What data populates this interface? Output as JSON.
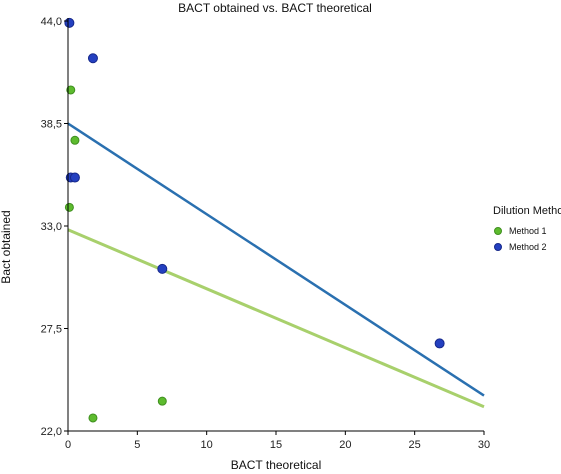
{
  "chart_data": {
    "type": "scatter",
    "title": "BACT obtained vs. BACT theoretical",
    "xlabel": "BACT theoretical",
    "ylabel": "Bact obtained",
    "xlim": [
      0,
      30
    ],
    "ylim": [
      22.0,
      44.0
    ],
    "x_ticks": [
      0,
      5,
      10,
      15,
      20,
      25,
      30
    ],
    "x_tick_labels": [
      "0",
      "5",
      "10",
      "15",
      "20",
      "25",
      "30"
    ],
    "y_ticks": [
      22.0,
      27.5,
      33.0,
      38.5,
      44.0
    ],
    "y_tick_labels": [
      "22,0",
      "27,5",
      "33,0",
      "38,5",
      "44,0"
    ],
    "grid": false,
    "legend": {
      "title": "Dilution Method",
      "position": "right"
    },
    "series": [
      {
        "name": "Method 1",
        "color": "#5dbb2e",
        "line_color": "#a8d06c",
        "points": [
          {
            "x": 0.2,
            "y": 40.3
          },
          {
            "x": 0.5,
            "y": 37.6
          },
          {
            "x": 0.1,
            "y": 34.0
          },
          {
            "x": 1.8,
            "y": 22.7
          },
          {
            "x": 6.8,
            "y": 23.6
          }
        ],
        "trend": {
          "x": [
            0,
            30
          ],
          "y": [
            32.8,
            23.3
          ]
        }
      },
      {
        "name": "Method 2",
        "color": "#2440c0",
        "line_color": "#2a70b0",
        "points": [
          {
            "x": 0.1,
            "y": 43.9
          },
          {
            "x": 1.8,
            "y": 42.0
          },
          {
            "x": 0.2,
            "y": 35.6
          },
          {
            "x": 0.5,
            "y": 35.6
          },
          {
            "x": 6.8,
            "y": 30.7
          },
          {
            "x": 26.8,
            "y": 26.7
          }
        ],
        "trend": {
          "x": [
            0,
            30
          ],
          "y": [
            38.5,
            23.9
          ]
        }
      }
    ]
  }
}
